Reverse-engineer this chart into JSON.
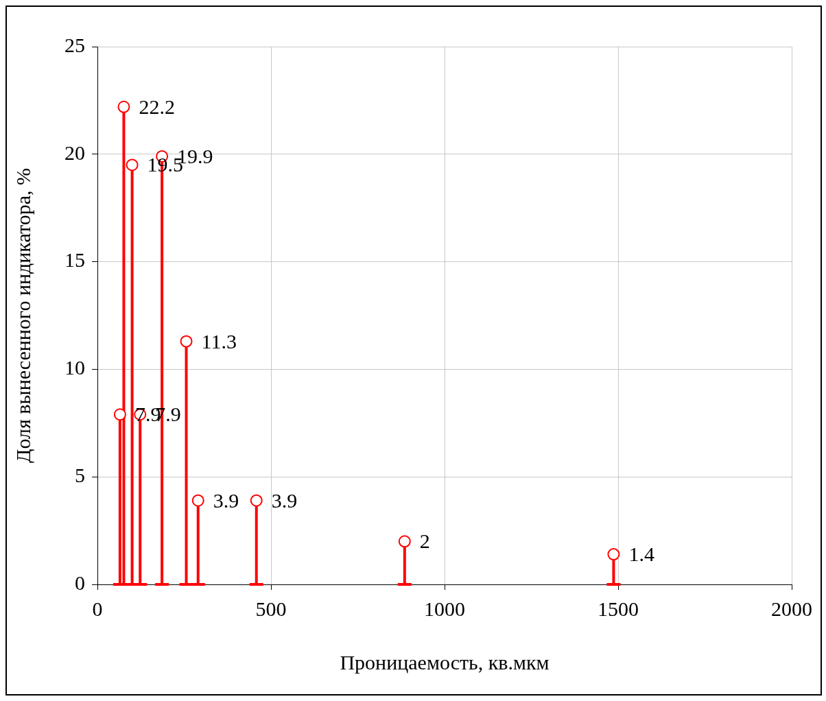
{
  "chart_data": {
    "type": "lollipop",
    "xlabel": "Проницаемость, кв.мкм",
    "ylabel": "Доля вынесенного индикатора, %",
    "x": [
      65,
      76,
      100,
      123,
      186,
      256,
      290,
      458,
      885,
      1487
    ],
    "values": [
      7.9,
      22.2,
      19.5,
      7.9,
      19.9,
      11.3,
      3.9,
      3.9,
      2,
      1.4
    ],
    "color": "#ff0000",
    "marker": "circle",
    "data_labels": true,
    "grid": true,
    "legend": false,
    "xlim": [
      0,
      2000
    ],
    "xticks": [
      0,
      500,
      1000,
      1500,
      2000
    ],
    "ylim": [
      0,
      25
    ],
    "yticks": [
      0,
      5,
      10,
      15,
      20,
      25
    ]
  }
}
